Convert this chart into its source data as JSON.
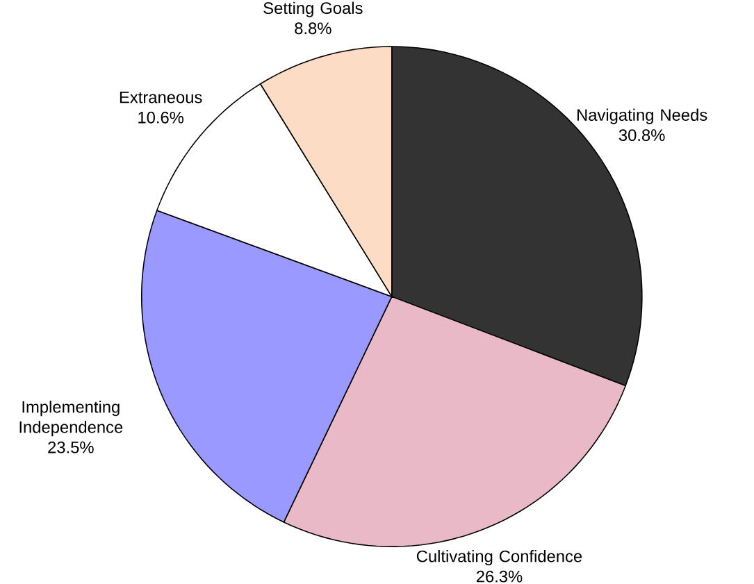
{
  "chart_data": {
    "type": "pie",
    "categories": [
      "Navigating Needs",
      "Cultivating Confidence",
      "Implementing Independence",
      "Extraneous",
      "Setting Goals"
    ],
    "values": [
      30.8,
      26.3,
      23.5,
      10.6,
      8.8
    ],
    "value_labels": [
      "30.8%",
      "26.3%",
      "23.5%",
      "10.6%",
      "8.8%"
    ],
    "colors": [
      "#333333",
      "#e9b9c8",
      "#9999ff",
      "#ffffff",
      "#fcdcc4"
    ]
  }
}
